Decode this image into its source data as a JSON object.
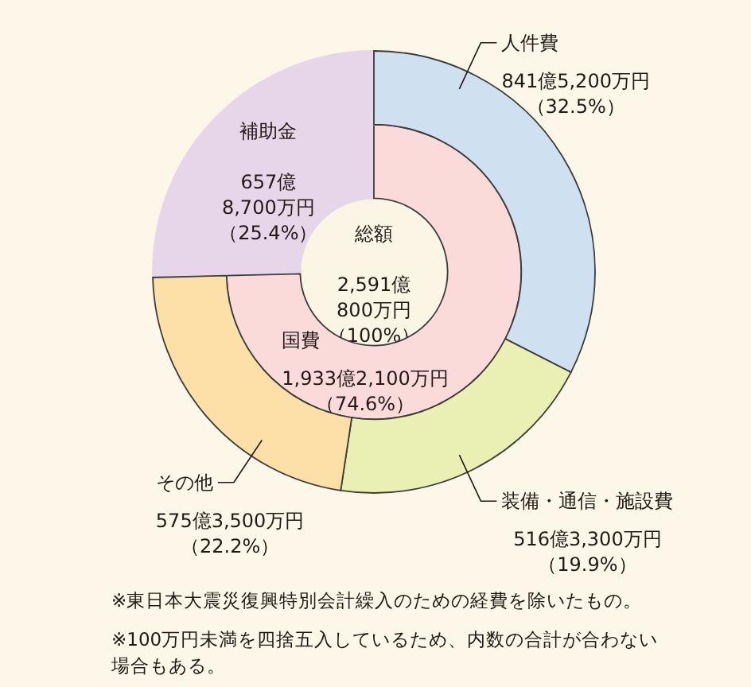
{
  "chart_data": [
    {
      "type": "donut",
      "categories": [
        "人件費",
        "装備・通信・施設費",
        "その他",
        "補助金"
      ],
      "values": [
        32.5,
        19.9,
        22.2,
        25.4
      ],
      "colors": [
        "#cfe0f0",
        "#eaf0b4",
        "#fde0a8",
        "#e7d5ea"
      ],
      "value_labels": [
        "841億5,200万円（32.5%）",
        "516億3,300万円（19.9%）",
        "575億3,500万円（22.2%）",
        "657億8,700万円（25.4%）"
      ],
      "annotations": [
        "※東日本大震災復興特別会計繰入のための経費を除いたもの。",
        "※100万円未満を四捨五入しているため、内数の合計が合わない場合もある。"
      ]
    },
    {
      "type": "donut",
      "categories": [
        "国費",
        null
      ],
      "values": [
        74.6,
        25.4
      ],
      "colors": [
        "#fbdada",
        "#e7d5ea"
      ],
      "value_labels": [
        "1,933億2,100万円（74.6%）",
        null
      ]
    },
    {
      "type": "pie",
      "categories": [
        "総額"
      ],
      "values": [
        100
      ],
      "colors": [
        "#fbf5e6"
      ],
      "value_labels": [
        "2,591億800万円（100%）"
      ]
    }
  ]
}
